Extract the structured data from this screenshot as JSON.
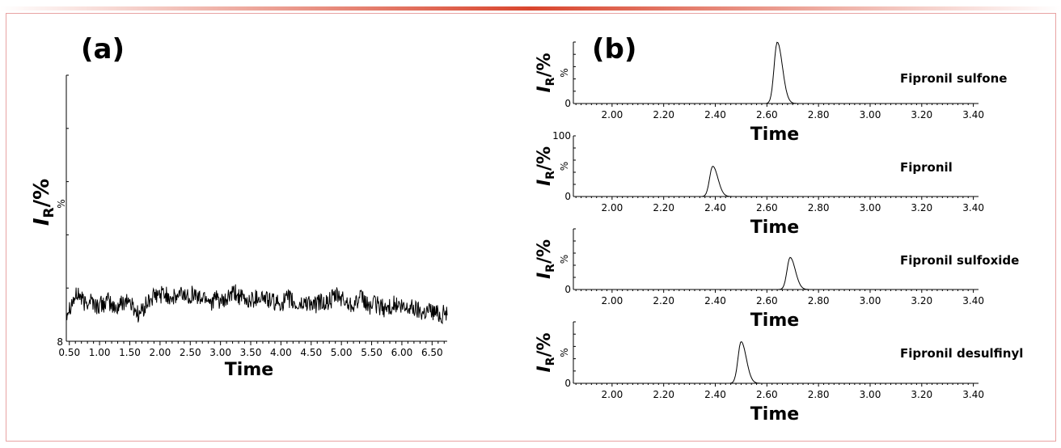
{
  "colors": {
    "accent": "#d9462e",
    "frame": "#e8a3a3",
    "line": "#000000"
  },
  "chart_data": [
    {
      "panel_label": "(a)",
      "type": "line",
      "title": "",
      "xlabel": "Time",
      "ylabel": "I_R/%",
      "ylabel_parts": {
        "symbol": "I",
        "subscript": "R",
        "rest": "/%",
        "unit": "%"
      },
      "xlim": [
        0.45,
        6.75
      ],
      "ylim": [
        0,
        100
      ],
      "y_ticks": [
        8
      ],
      "x_ticks": [
        "0.50",
        "1.00",
        "1.50",
        "2.00",
        "2.50",
        "3.00",
        "3.50",
        "4.00",
        "4.50",
        "5.00",
        "5.50",
        "6.00",
        "6.50"
      ],
      "series": [
        {
          "x": [
            0.45,
            0.55,
            0.65,
            0.75,
            0.85,
            0.95,
            1.05,
            1.15,
            1.25,
            1.35,
            1.45,
            1.55,
            1.65,
            1.75,
            1.85,
            1.95,
            2.05,
            2.15,
            2.25,
            2.35,
            2.45,
            2.55,
            2.65,
            2.75,
            2.85,
            2.95,
            3.05,
            3.15,
            3.25,
            3.35,
            3.45,
            3.55,
            3.65,
            3.75,
            3.85,
            3.95,
            4.05,
            4.15,
            4.25,
            4.35,
            4.45,
            4.55,
            4.65,
            4.75,
            4.85,
            4.95,
            5.05,
            5.15,
            5.25,
            5.35,
            5.45,
            5.55,
            5.65,
            5.75,
            5.85,
            5.95,
            6.05,
            6.15,
            6.25,
            6.35,
            6.45,
            6.55,
            6.65,
            6.75
          ],
          "values": [
            11,
            15,
            18,
            14,
            16,
            13,
            14,
            15,
            12,
            14,
            16,
            13,
            10,
            13,
            16,
            17,
            18,
            17,
            16,
            18,
            17,
            18,
            16,
            17,
            15,
            16,
            14,
            17,
            18,
            16,
            15,
            16,
            17,
            16,
            15,
            14,
            15,
            16,
            13,
            14,
            15,
            13,
            15,
            14,
            16,
            17,
            15,
            14,
            15,
            16,
            13,
            14,
            13,
            12,
            14,
            13,
            12,
            13,
            12,
            11,
            12,
            11,
            10,
            11
          ]
        }
      ]
    },
    {
      "panel_label": "(b)",
      "type": "line",
      "xlabel": "Time",
      "ylabel": "I_R/%",
      "ylabel_parts": {
        "symbol": "I",
        "subscript": "R",
        "rest": "/%",
        "unit": "%"
      },
      "xlim": [
        1.85,
        3.42
      ],
      "ylim": [
        0,
        100
      ],
      "x_ticks": [
        "2.00",
        "2.20",
        "2.40",
        "2.60",
        "2.80",
        "3.00",
        "3.20",
        "3.40"
      ],
      "y_ticks": [
        "0",
        "100"
      ],
      "annotations": [
        "Fipronil sulfone",
        "Fipronil",
        "Fipronil sulfoxide",
        "Fipronil desulfinyl"
      ],
      "traces": [
        {
          "name": "Fipronil sulfone",
          "peak_time": 2.64,
          "peak_height": 100,
          "y_tick_labels": [
            "0"
          ]
        },
        {
          "name": "Fipronil",
          "peak_time": 2.39,
          "peak_height": 50,
          "y_tick_labels": [
            "0",
            "100"
          ]
        },
        {
          "name": "Fipronil sulfoxide",
          "peak_time": 2.69,
          "peak_height": 53,
          "y_tick_labels": [
            "0"
          ]
        },
        {
          "name": "Fipronil desulfinyl",
          "peak_time": 2.5,
          "peak_height": 68,
          "y_tick_labels": [
            "0"
          ]
        }
      ]
    }
  ]
}
